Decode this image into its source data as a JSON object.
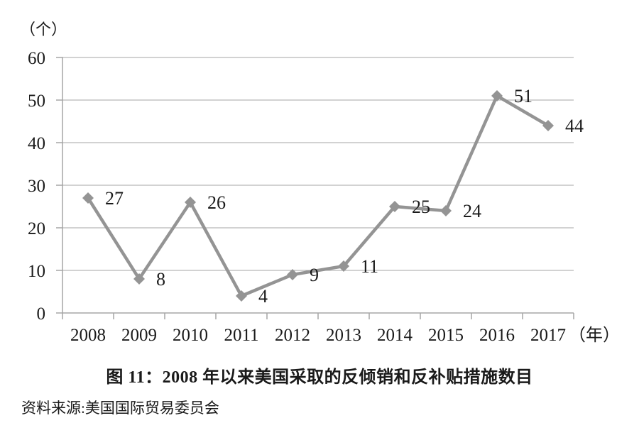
{
  "figure": {
    "caption": "图 11：2008 年以来美国采取的反倾销和反补贴措施数目",
    "source": "资料来源:美国国际贸易委员会"
  },
  "chart_data": {
    "type": "line",
    "title": "图 11：2008 年以来美国采取的反倾销和反补贴措施数目",
    "categories": [
      "2008",
      "2009",
      "2010",
      "2011",
      "2012",
      "2013",
      "2014",
      "2015",
      "2016",
      "2017"
    ],
    "values": [
      27,
      8,
      26,
      4,
      9,
      11,
      25,
      24,
      51,
      44
    ],
    "y_ticks": [
      0,
      10,
      20,
      30,
      40,
      50,
      60
    ],
    "ylim": [
      0,
      60
    ],
    "xlabel_unit": "（年）",
    "ylabel_unit": "（个）",
    "grid": "horizontal",
    "legend": "none",
    "marker": "diamond",
    "line_color": "#949494",
    "marker_color": "#949494",
    "gridline_color": "#a6a6a6",
    "axis_color": "#a6a6a6",
    "text_color": "#1a1a1a"
  }
}
